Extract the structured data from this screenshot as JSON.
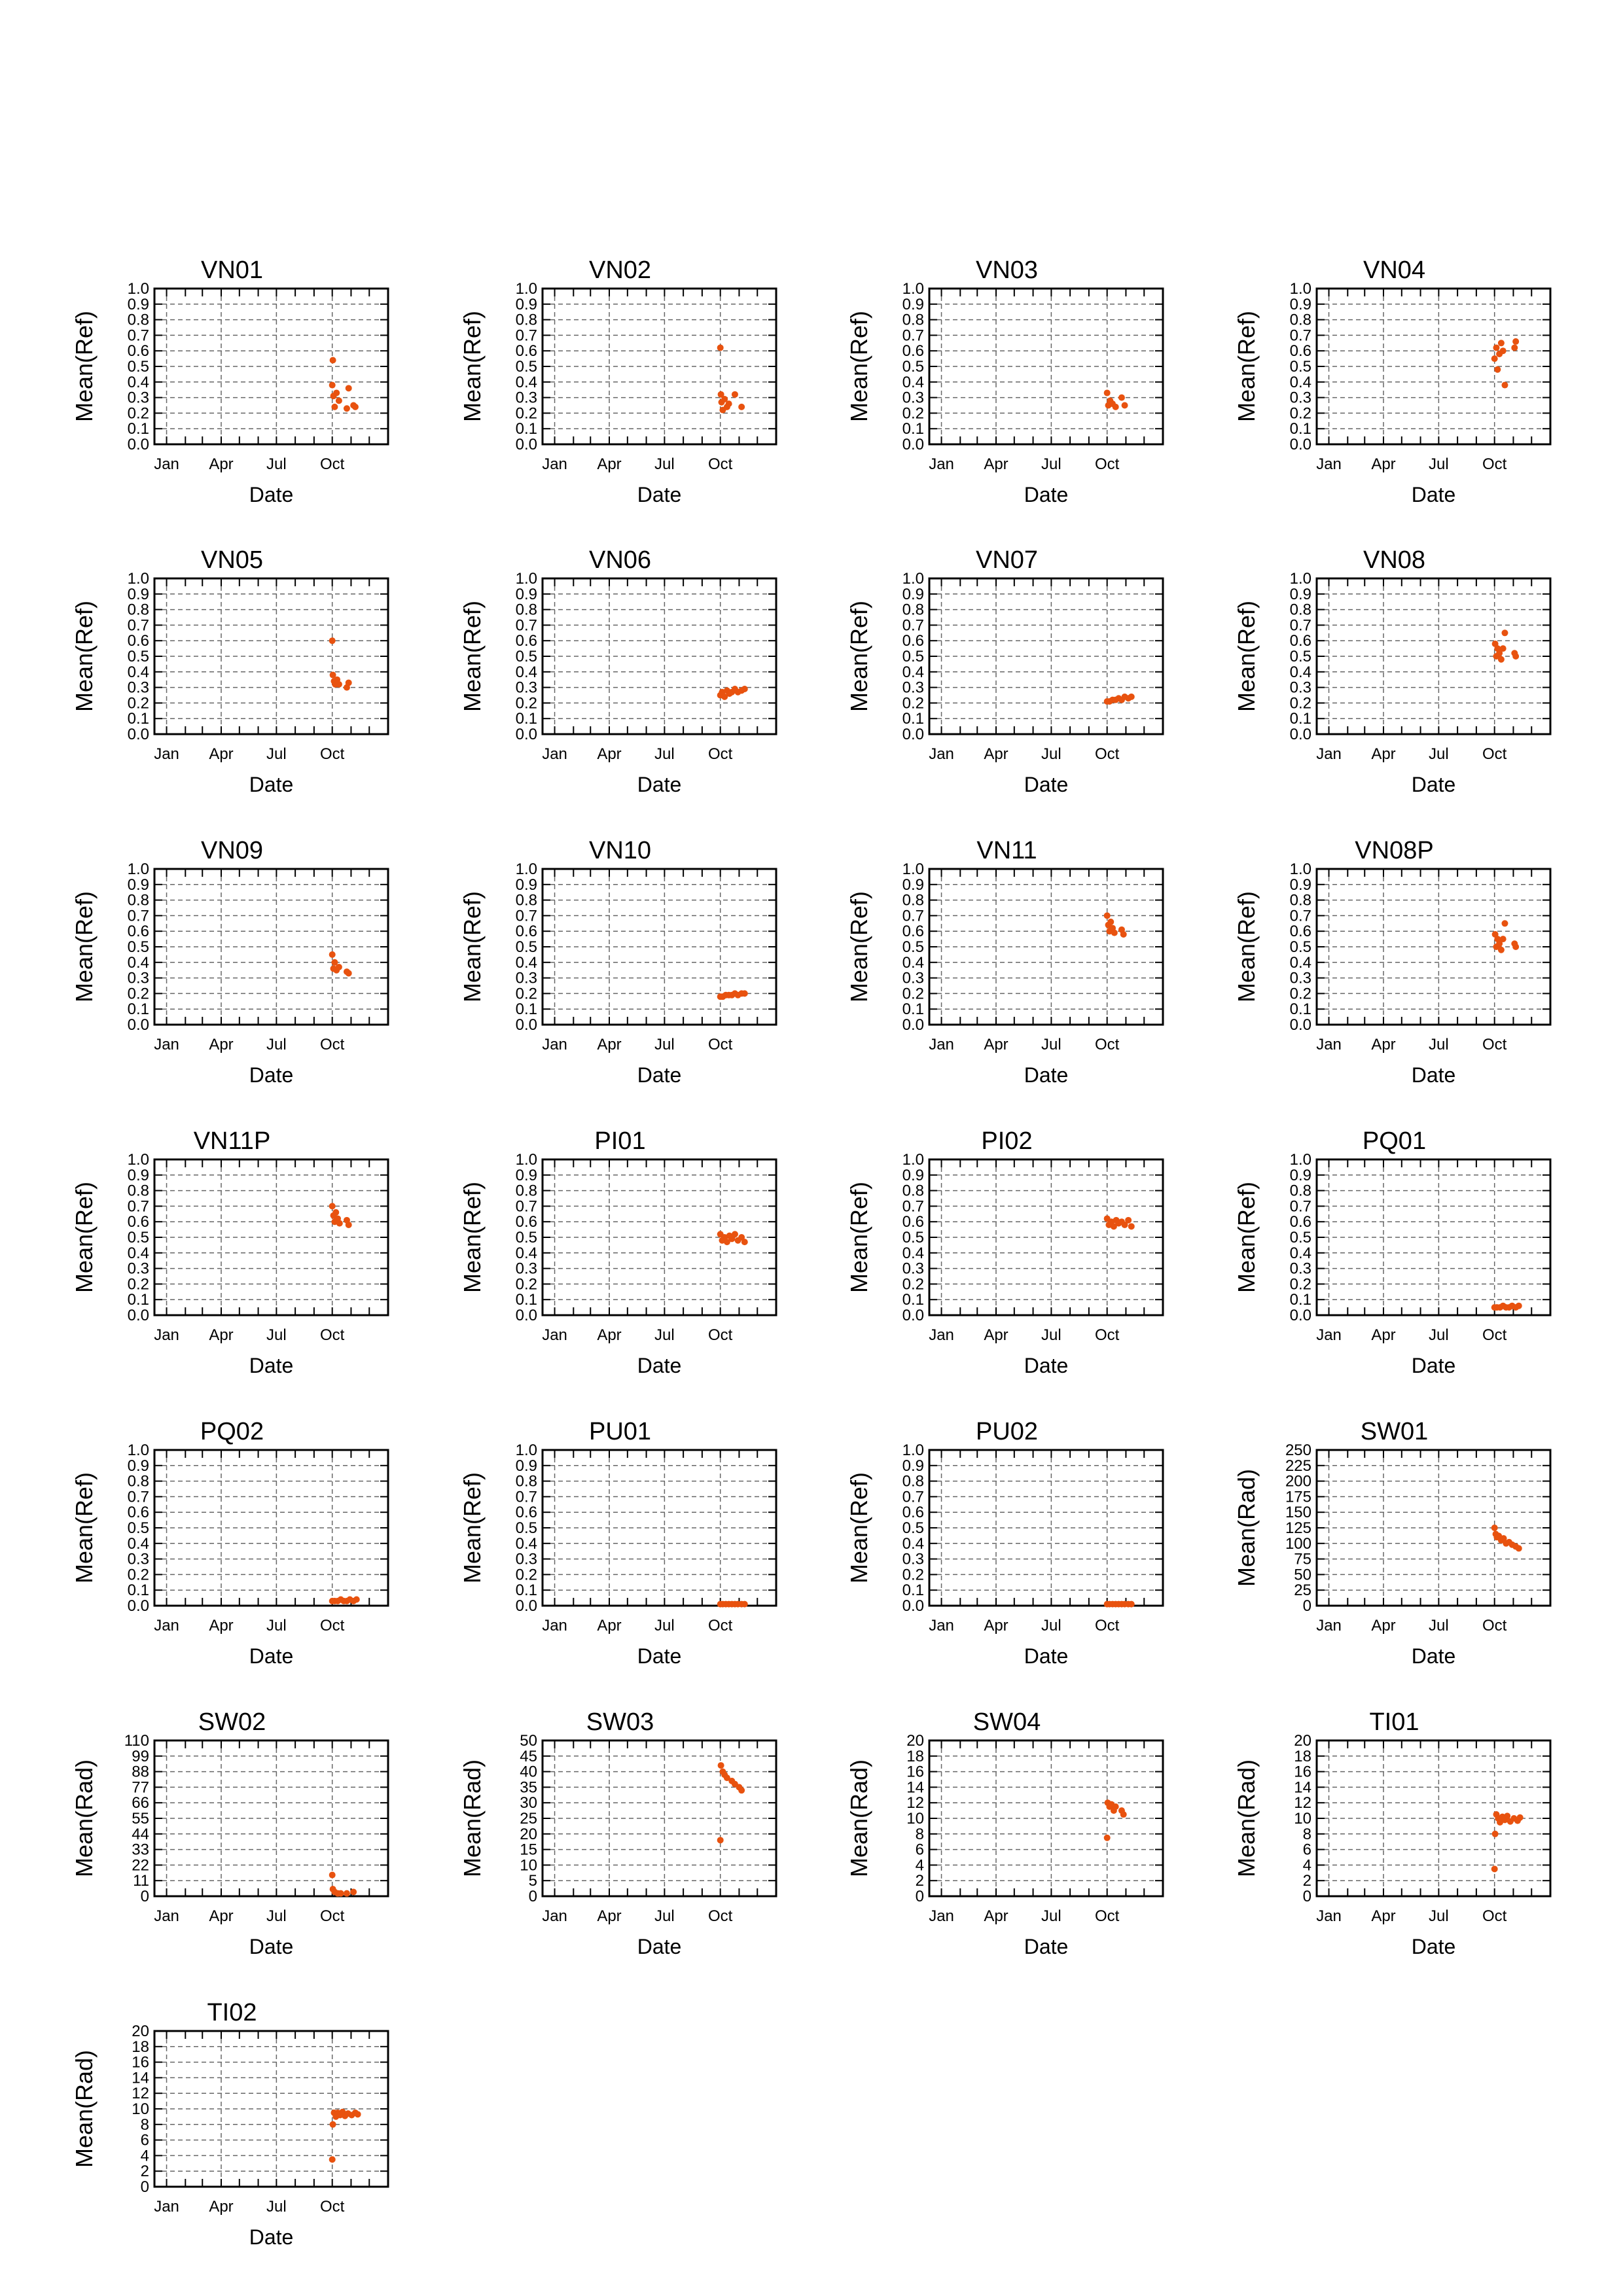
{
  "colors": {
    "series": "#e8520f",
    "axis": "#000000",
    "grid": "#666666"
  },
  "chart_data": [
    {
      "type": "scatter",
      "title": "VN01",
      "xlabel": "Date",
      "ylabel": "Mean(Ref)",
      "ylim": [
        0,
        1.0
      ],
      "yticks": [
        "0.0",
        "0.1",
        "0.2",
        "0.3",
        "0.4",
        "0.5",
        "0.6",
        "0.7",
        "0.8",
        "0.9",
        "1.0"
      ],
      "xticks": [
        "Jan",
        "Apr",
        "Jul",
        "Oct"
      ],
      "grid": true,
      "x": [
        "Oct 01",
        "Oct 02",
        "Oct 03",
        "Oct 05",
        "Oct 08",
        "Oct 12",
        "Oct 25",
        "Oct 28",
        "Nov 05",
        "Nov 08"
      ],
      "y": [
        0.38,
        0.54,
        0.31,
        0.24,
        0.33,
        0.28,
        0.23,
        0.36,
        0.25,
        0.24
      ]
    },
    {
      "type": "scatter",
      "title": "VN02",
      "xlabel": "Date",
      "ylabel": "Mean(Ref)",
      "ylim": [
        0,
        1.0
      ],
      "yticks": [
        "0.0",
        "0.1",
        "0.2",
        "0.3",
        "0.4",
        "0.5",
        "0.6",
        "0.7",
        "0.8",
        "0.9",
        "1.0"
      ],
      "xticks": [
        "Jan",
        "Apr",
        "Jul",
        "Oct"
      ],
      "grid": true,
      "x": [
        "Oct 01",
        "Oct 02",
        "Oct 03",
        "Oct 05",
        "Oct 08",
        "Oct 12",
        "Oct 15",
        "Oct 25",
        "Nov 05"
      ],
      "y": [
        0.62,
        0.32,
        0.27,
        0.22,
        0.29,
        0.24,
        0.26,
        0.32,
        0.24
      ]
    },
    {
      "type": "scatter",
      "title": "VN03",
      "xlabel": "Date",
      "ylabel": "Mean(Ref)",
      "ylim": [
        0,
        1.0
      ],
      "yticks": [
        "0.0",
        "0.1",
        "0.2",
        "0.3",
        "0.4",
        "0.5",
        "0.6",
        "0.7",
        "0.8",
        "0.9",
        "1.0"
      ],
      "xticks": [
        "Jan",
        "Apr",
        "Jul",
        "Oct"
      ],
      "grid": true,
      "x": [
        "Oct 01",
        "Oct 03",
        "Oct 06",
        "Oct 10",
        "Oct 15",
        "Oct 25",
        "Oct 30"
      ],
      "y": [
        0.33,
        0.25,
        0.28,
        0.26,
        0.24,
        0.3,
        0.25
      ]
    },
    {
      "type": "scatter",
      "title": "VN04",
      "xlabel": "Date",
      "ylabel": "Mean(Ref)",
      "ylim": [
        0,
        1.0
      ],
      "yticks": [
        "0.0",
        "0.1",
        "0.2",
        "0.3",
        "0.4",
        "0.5",
        "0.6",
        "0.7",
        "0.8",
        "0.9",
        "1.0"
      ],
      "xticks": [
        "Jan",
        "Apr",
        "Jul",
        "Oct"
      ],
      "grid": true,
      "x": [
        "Oct 01",
        "Oct 04",
        "Oct 06",
        "Oct 09",
        "Oct 12",
        "Oct 15",
        "Oct 18",
        "Nov 03",
        "Nov 05"
      ],
      "y": [
        0.55,
        0.62,
        0.48,
        0.58,
        0.65,
        0.6,
        0.38,
        0.62,
        0.66
      ]
    },
    {
      "type": "scatter",
      "title": "VN05",
      "xlabel": "Date",
      "ylabel": "Mean(Ref)",
      "ylim": [
        0,
        1.0
      ],
      "yticks": [
        "0.0",
        "0.1",
        "0.2",
        "0.3",
        "0.4",
        "0.5",
        "0.6",
        "0.7",
        "0.8",
        "0.9",
        "1.0"
      ],
      "xticks": [
        "Jan",
        "Apr",
        "Jul",
        "Oct"
      ],
      "grid": true,
      "x": [
        "Oct 01",
        "Oct 02",
        "Oct 04",
        "Oct 06",
        "Oct 09",
        "Oct 12",
        "Oct 25",
        "Oct 28"
      ],
      "y": [
        0.6,
        0.38,
        0.34,
        0.32,
        0.35,
        0.32,
        0.3,
        0.33
      ]
    },
    {
      "type": "scatter",
      "title": "VN06",
      "xlabel": "Date",
      "ylabel": "Mean(Ref)",
      "ylim": [
        0,
        1.0
      ],
      "yticks": [
        "0.0",
        "0.1",
        "0.2",
        "0.3",
        "0.4",
        "0.5",
        "0.6",
        "0.7",
        "0.8",
        "0.9",
        "1.0"
      ],
      "xticks": [
        "Jan",
        "Apr",
        "Jul",
        "Oct"
      ],
      "grid": true,
      "x": [
        "Oct 01",
        "Oct 04",
        "Oct 08",
        "Oct 12",
        "Oct 16",
        "Oct 20",
        "Oct 25",
        "Oct 30",
        "Nov 05",
        "Nov 10"
      ],
      "y": [
        0.25,
        0.27,
        0.24,
        0.28,
        0.26,
        0.27,
        0.29,
        0.27,
        0.28,
        0.29
      ]
    },
    {
      "type": "scatter",
      "title": "VN07",
      "xlabel": "Date",
      "ylabel": "Mean(Ref)",
      "ylim": [
        0,
        1.0
      ],
      "yticks": [
        "0.0",
        "0.1",
        "0.2",
        "0.3",
        "0.4",
        "0.5",
        "0.6",
        "0.7",
        "0.8",
        "0.9",
        "1.0"
      ],
      "xticks": [
        "Jan",
        "Apr",
        "Jul",
        "Oct"
      ],
      "grid": true,
      "x": [
        "Oct 01",
        "Oct 05",
        "Oct 10",
        "Oct 15",
        "Oct 20",
        "Oct 25",
        "Oct 30",
        "Nov 05",
        "Nov 10"
      ],
      "y": [
        0.21,
        0.21,
        0.22,
        0.22,
        0.23,
        0.22,
        0.24,
        0.23,
        0.24
      ]
    },
    {
      "type": "scatter",
      "title": "VN08",
      "xlabel": "Date",
      "ylabel": "Mean(Ref)",
      "ylim": [
        0,
        1.0
      ],
      "yticks": [
        "0.0",
        "0.1",
        "0.2",
        "0.3",
        "0.4",
        "0.5",
        "0.6",
        "0.7",
        "0.8",
        "0.9",
        "1.0"
      ],
      "xticks": [
        "Jan",
        "Apr",
        "Jul",
        "Oct"
      ],
      "grid": true,
      "x": [
        "Oct 02",
        "Oct 04",
        "Oct 06",
        "Oct 09",
        "Oct 12",
        "Oct 15",
        "Oct 18",
        "Nov 03",
        "Nov 05"
      ],
      "y": [
        0.58,
        0.5,
        0.55,
        0.52,
        0.48,
        0.55,
        0.65,
        0.52,
        0.5
      ]
    },
    {
      "type": "scatter",
      "title": "VN09",
      "xlabel": "Date",
      "ylabel": "Mean(Ref)",
      "ylim": [
        0,
        1.0
      ],
      "yticks": [
        "0.0",
        "0.1",
        "0.2",
        "0.3",
        "0.4",
        "0.5",
        "0.6",
        "0.7",
        "0.8",
        "0.9",
        "1.0"
      ],
      "xticks": [
        "Jan",
        "Apr",
        "Jul",
        "Oct"
      ],
      "grid": true,
      "x": [
        "Oct 01",
        "Oct 03",
        "Oct 05",
        "Oct 08",
        "Oct 12",
        "Oct 25",
        "Oct 28"
      ],
      "y": [
        0.45,
        0.36,
        0.4,
        0.35,
        0.37,
        0.34,
        0.33
      ]
    },
    {
      "type": "scatter",
      "title": "VN10",
      "xlabel": "Date",
      "ylabel": "Mean(Ref)",
      "ylim": [
        0,
        1.0
      ],
      "yticks": [
        "0.0",
        "0.1",
        "0.2",
        "0.3",
        "0.4",
        "0.5",
        "0.6",
        "0.7",
        "0.8",
        "0.9",
        "1.0"
      ],
      "xticks": [
        "Jan",
        "Apr",
        "Jul",
        "Oct"
      ],
      "grid": true,
      "x": [
        "Oct 01",
        "Oct 05",
        "Oct 10",
        "Oct 15",
        "Oct 20",
        "Oct 25",
        "Oct 30",
        "Nov 05",
        "Nov 10"
      ],
      "y": [
        0.18,
        0.18,
        0.19,
        0.19,
        0.19,
        0.2,
        0.19,
        0.2,
        0.2
      ]
    },
    {
      "type": "scatter",
      "title": "VN11",
      "xlabel": "Date",
      "ylabel": "Mean(Ref)",
      "ylim": [
        0,
        1.0
      ],
      "yticks": [
        "0.0",
        "0.1",
        "0.2",
        "0.3",
        "0.4",
        "0.5",
        "0.6",
        "0.7",
        "0.8",
        "0.9",
        "1.0"
      ],
      "xticks": [
        "Jan",
        "Apr",
        "Jul",
        "Oct"
      ],
      "grid": true,
      "x": [
        "Oct 01",
        "Oct 03",
        "Oct 05",
        "Oct 07",
        "Oct 10",
        "Oct 13",
        "Oct 25",
        "Oct 28"
      ],
      "y": [
        0.7,
        0.64,
        0.6,
        0.66,
        0.62,
        0.59,
        0.61,
        0.58
      ]
    },
    {
      "type": "scatter",
      "title": "VN08P",
      "xlabel": "Date",
      "ylabel": "Mean(Ref)",
      "ylim": [
        0,
        1.0
      ],
      "yticks": [
        "0.0",
        "0.1",
        "0.2",
        "0.3",
        "0.4",
        "0.5",
        "0.6",
        "0.7",
        "0.8",
        "0.9",
        "1.0"
      ],
      "xticks": [
        "Jan",
        "Apr",
        "Jul",
        "Oct"
      ],
      "grid": true,
      "x": [
        "Oct 02",
        "Oct 04",
        "Oct 06",
        "Oct 09",
        "Oct 12",
        "Oct 15",
        "Oct 18",
        "Nov 03",
        "Nov 05"
      ],
      "y": [
        0.58,
        0.5,
        0.55,
        0.52,
        0.48,
        0.55,
        0.65,
        0.52,
        0.5
      ]
    },
    {
      "type": "scatter",
      "title": "VN11P",
      "xlabel": "Date",
      "ylabel": "Mean(Ref)",
      "ylim": [
        0,
        1.0
      ],
      "yticks": [
        "0.0",
        "0.1",
        "0.2",
        "0.3",
        "0.4",
        "0.5",
        "0.6",
        "0.7",
        "0.8",
        "0.9",
        "1.0"
      ],
      "xticks": [
        "Jan",
        "Apr",
        "Jul",
        "Oct"
      ],
      "grid": true,
      "x": [
        "Oct 01",
        "Oct 03",
        "Oct 05",
        "Oct 07",
        "Oct 10",
        "Oct 13",
        "Oct 25",
        "Oct 28"
      ],
      "y": [
        0.7,
        0.64,
        0.6,
        0.66,
        0.62,
        0.59,
        0.61,
        0.58
      ]
    },
    {
      "type": "scatter",
      "title": "PI01",
      "xlabel": "Date",
      "ylabel": "Mean(Ref)",
      "ylim": [
        0,
        1.0
      ],
      "yticks": [
        "0.0",
        "0.1",
        "0.2",
        "0.3",
        "0.4",
        "0.5",
        "0.6",
        "0.7",
        "0.8",
        "0.9",
        "1.0"
      ],
      "xticks": [
        "Jan",
        "Apr",
        "Jul",
        "Oct"
      ],
      "grid": true,
      "x": [
        "Oct 01",
        "Oct 04",
        "Oct 08",
        "Oct 12",
        "Oct 16",
        "Oct 20",
        "Oct 25",
        "Oct 30",
        "Nov 05",
        "Nov 10"
      ],
      "y": [
        0.52,
        0.48,
        0.5,
        0.47,
        0.51,
        0.49,
        0.52,
        0.48,
        0.5,
        0.47
      ]
    },
    {
      "type": "scatter",
      "title": "PI02",
      "xlabel": "Date",
      "ylabel": "Mean(Ref)",
      "ylim": [
        0,
        1.0
      ],
      "yticks": [
        "0.0",
        "0.1",
        "0.2",
        "0.3",
        "0.4",
        "0.5",
        "0.6",
        "0.7",
        "0.8",
        "0.9",
        "1.0"
      ],
      "xticks": [
        "Jan",
        "Apr",
        "Jul",
        "Oct"
      ],
      "grid": true,
      "x": [
        "Oct 01",
        "Oct 04",
        "Oct 08",
        "Oct 12",
        "Oct 16",
        "Oct 20",
        "Oct 25",
        "Oct 30",
        "Nov 05",
        "Nov 10"
      ],
      "y": [
        0.62,
        0.58,
        0.6,
        0.57,
        0.61,
        0.59,
        0.6,
        0.58,
        0.61,
        0.57
      ]
    },
    {
      "type": "scatter",
      "title": "PQ01",
      "xlabel": "Date",
      "ylabel": "Mean(Ref)",
      "ylim": [
        0,
        1.0
      ],
      "yticks": [
        "0.0",
        "0.1",
        "0.2",
        "0.3",
        "0.4",
        "0.5",
        "0.6",
        "0.7",
        "0.8",
        "0.9",
        "1.0"
      ],
      "xticks": [
        "Jan",
        "Apr",
        "Jul",
        "Oct"
      ],
      "grid": true,
      "x": [
        "Oct 01",
        "Oct 05",
        "Oct 10",
        "Oct 15",
        "Oct 20",
        "Oct 25",
        "Oct 30",
        "Nov 05",
        "Nov 10"
      ],
      "y": [
        0.05,
        0.05,
        0.05,
        0.06,
        0.05,
        0.05,
        0.06,
        0.05,
        0.06
      ]
    },
    {
      "type": "scatter",
      "title": "PQ02",
      "xlabel": "Date",
      "ylabel": "Mean(Ref)",
      "ylim": [
        0,
        1.0
      ],
      "yticks": [
        "0.0",
        "0.1",
        "0.2",
        "0.3",
        "0.4",
        "0.5",
        "0.6",
        "0.7",
        "0.8",
        "0.9",
        "1.0"
      ],
      "xticks": [
        "Jan",
        "Apr",
        "Jul",
        "Oct"
      ],
      "grid": true,
      "x": [
        "Oct 01",
        "Oct 05",
        "Oct 10",
        "Oct 15",
        "Oct 20",
        "Oct 25",
        "Oct 30",
        "Nov 05",
        "Nov 10"
      ],
      "y": [
        0.03,
        0.03,
        0.03,
        0.04,
        0.03,
        0.03,
        0.04,
        0.03,
        0.04
      ]
    },
    {
      "type": "scatter",
      "title": "PU01",
      "xlabel": "Date",
      "ylabel": "Mean(Ref)",
      "ylim": [
        0,
        1.0
      ],
      "yticks": [
        "0.0",
        "0.1",
        "0.2",
        "0.3",
        "0.4",
        "0.5",
        "0.6",
        "0.7",
        "0.8",
        "0.9",
        "1.0"
      ],
      "xticks": [
        "Jan",
        "Apr",
        "Jul",
        "Oct"
      ],
      "grid": true,
      "x": [
        "Oct 01",
        "Oct 05",
        "Oct 10",
        "Oct 15",
        "Oct 20",
        "Oct 25",
        "Oct 30",
        "Nov 05",
        "Nov 10"
      ],
      "y": [
        0.01,
        0.01,
        0.01,
        0.01,
        0.01,
        0.01,
        0.01,
        0.01,
        0.01
      ]
    },
    {
      "type": "scatter",
      "title": "PU02",
      "xlabel": "Date",
      "ylabel": "Mean(Ref)",
      "ylim": [
        0,
        1.0
      ],
      "yticks": [
        "0.0",
        "0.1",
        "0.2",
        "0.3",
        "0.4",
        "0.5",
        "0.6",
        "0.7",
        "0.8",
        "0.9",
        "1.0"
      ],
      "xticks": [
        "Jan",
        "Apr",
        "Jul",
        "Oct"
      ],
      "grid": true,
      "x": [
        "Oct 01",
        "Oct 05",
        "Oct 10",
        "Oct 15",
        "Oct 20",
        "Oct 25",
        "Oct 30",
        "Nov 05",
        "Nov 10"
      ],
      "y": [
        0.01,
        0.01,
        0.01,
        0.01,
        0.01,
        0.01,
        0.01,
        0.01,
        0.01
      ]
    },
    {
      "type": "scatter",
      "title": "SW01",
      "xlabel": "Date",
      "ylabel": "Mean(Rad)",
      "ylim": [
        0,
        250
      ],
      "yticks": [
        "0",
        "25",
        "50",
        "75",
        "100",
        "125",
        "150",
        "175",
        "200",
        "225",
        "250"
      ],
      "xticks": [
        "Jan",
        "Apr",
        "Jul",
        "Oct"
      ],
      "grid": true,
      "x": [
        "Oct 01",
        "Oct 03",
        "Oct 05",
        "Oct 08",
        "Oct 12",
        "Oct 16",
        "Oct 20",
        "Oct 25",
        "Oct 30",
        "Nov 05",
        "Nov 10"
      ],
      "y": [
        125,
        115,
        110,
        112,
        105,
        108,
        100,
        102,
        98,
        95,
        92
      ]
    },
    {
      "type": "scatter",
      "title": "SW02",
      "xlabel": "Date",
      "ylabel": "Mean(Rad)",
      "ylim": [
        0,
        110
      ],
      "yticks": [
        "0",
        "11",
        "22",
        "33",
        "44",
        "55",
        "66",
        "77",
        "88",
        "99",
        "110"
      ],
      "xticks": [
        "Jan",
        "Apr",
        "Jul",
        "Oct"
      ],
      "grid": true,
      "x": [
        "Oct 01",
        "Oct 02",
        "Oct 05",
        "Oct 10",
        "Oct 15",
        "Oct 25",
        "Nov 05"
      ],
      "y": [
        15,
        5,
        3,
        2,
        2,
        2,
        3
      ]
    },
    {
      "type": "scatter",
      "title": "SW03",
      "xlabel": "Date",
      "ylabel": "Mean(Rad)",
      "ylim": [
        0,
        50
      ],
      "yticks": [
        "0",
        "5",
        "10",
        "15",
        "20",
        "25",
        "30",
        "35",
        "40",
        "45",
        "50"
      ],
      "xticks": [
        "Jan",
        "Apr",
        "Jul",
        "Oct"
      ],
      "grid": true,
      "x": [
        "Oct 01",
        "Oct 02",
        "Oct 05",
        "Oct 08",
        "Oct 12",
        "Oct 20",
        "Oct 25",
        "Nov 01",
        "Nov 05"
      ],
      "y": [
        18,
        42,
        40,
        39,
        38,
        37,
        36,
        35,
        34
      ]
    },
    {
      "type": "scatter",
      "title": "SW04",
      "xlabel": "Date",
      "ylabel": "Mean(Rad)",
      "ylim": [
        0,
        20
      ],
      "yticks": [
        "0",
        "2",
        "4",
        "6",
        "8",
        "10",
        "12",
        "14",
        "16",
        "18",
        "20"
      ],
      "xticks": [
        "Jan",
        "Apr",
        "Jul",
        "Oct"
      ],
      "grid": true,
      "x": [
        "Oct 01",
        "Oct 02",
        "Oct 05",
        "Oct 08",
        "Oct 12",
        "Oct 15",
        "Oct 25",
        "Oct 28"
      ],
      "y": [
        7.5,
        12,
        11.5,
        11.8,
        11,
        11.5,
        11,
        10.5
      ]
    },
    {
      "type": "scatter",
      "title": "TI01",
      "xlabel": "Date",
      "ylabel": "Mean(Rad)",
      "ylim": [
        0,
        20
      ],
      "yticks": [
        "0",
        "2",
        "4",
        "6",
        "8",
        "10",
        "12",
        "14",
        "16",
        "18",
        "20"
      ],
      "xticks": [
        "Jan",
        "Apr",
        "Jul",
        "Oct"
      ],
      "grid": true,
      "x": [
        "Oct 01",
        "Oct 02",
        "Oct 04",
        "Oct 07",
        "Oct 10",
        "Oct 14",
        "Oct 18",
        "Oct 22",
        "Oct 27",
        "Nov 02",
        "Nov 08",
        "Nov 12"
      ],
      "y": [
        3.5,
        8,
        10.5,
        10,
        9.5,
        10.2,
        9.8,
        10.3,
        9.6,
        10,
        9.7,
        10.1
      ]
    },
    {
      "type": "scatter",
      "title": "TI02",
      "xlabel": "Date",
      "ylabel": "Mean(Rad)",
      "ylim": [
        0,
        20
      ],
      "yticks": [
        "0",
        "2",
        "4",
        "6",
        "8",
        "10",
        "12",
        "14",
        "16",
        "18",
        "20"
      ],
      "xticks": [
        "Jan",
        "Apr",
        "Jul",
        "Oct"
      ],
      "grid": true,
      "x": [
        "Oct 01",
        "Oct 02",
        "Oct 04",
        "Oct 07",
        "Oct 10",
        "Oct 14",
        "Oct 18",
        "Oct 22",
        "Oct 27",
        "Nov 02",
        "Nov 08",
        "Nov 12"
      ],
      "y": [
        3.5,
        8,
        9.5,
        9,
        9.5,
        9.2,
        9.6,
        9.1,
        9.4,
        9.2,
        9.5,
        9.3
      ]
    }
  ]
}
